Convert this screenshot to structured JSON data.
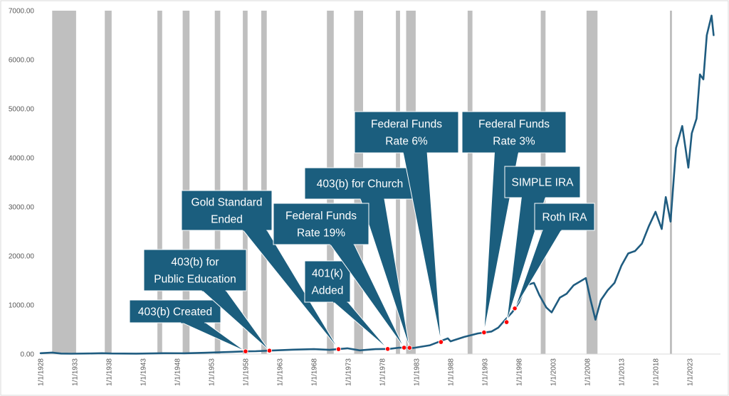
{
  "chart_data": {
    "type": "line",
    "title": "",
    "xlabel": "",
    "ylabel": "",
    "ylim": [
      0,
      7000
    ],
    "yticks": [
      0,
      1000,
      2000,
      3000,
      4000,
      5000,
      6000,
      7000
    ],
    "ytick_labels": [
      "0.00",
      "1000.00",
      "2000.00",
      "3000.00",
      "4000.00",
      "5000.00",
      "6000.00",
      "7000.00"
    ],
    "xlim": [
      1928.0,
      2027.5
    ],
    "xticks": [
      1928,
      1933,
      1938,
      1943,
      1948,
      1953,
      1958,
      1963,
      1968,
      1973,
      1978,
      1983,
      1988,
      1993,
      1998,
      2003,
      2008,
      2013,
      2018,
      2023
    ],
    "xtick_labels": [
      "1/1/1928",
      "1/1/1933",
      "1/1/1938",
      "1/1/1943",
      "1/1/1948",
      "1/1/1953",
      "1/1/1958",
      "1/1/1963",
      "1/1/1968",
      "1/1/1973",
      "1/1/1978",
      "1/1/1983",
      "1/1/1988",
      "1/1/1993",
      "1/1/1998",
      "1/1/2003",
      "1/1/2008",
      "1/1/2013",
      "1/1/2018",
      "1/1/2023"
    ],
    "grid": false,
    "legend": "none",
    "colors": {
      "line": "#1f5c80",
      "shade": "#bfbfbf",
      "callout": "#1b5e7e",
      "marker": "#ff0000"
    },
    "series": [
      {
        "x": [
          1928,
          1929.7,
          1931,
          1932.5,
          1935,
          1937,
          1938.3,
          1942,
          1946,
          1949,
          1952,
          1954,
          1956,
          1958,
          1959.5,
          1961.5,
          1965,
          1968,
          1970.3,
          1972.9,
          1974.7,
          1977,
          1979,
          1980.5,
          1982.6,
          1985,
          1987.6,
          1988,
          1990,
          1992,
          1994,
          1995,
          1996,
          1997,
          1998,
          1998.6,
          1999,
          2000.2,
          2001,
          2002,
          2002.8,
          2004,
          2005,
          2006,
          2007.8,
          2008.5,
          2009.2,
          2010,
          2011,
          2012,
          2013,
          2014,
          2015,
          2016,
          2017,
          2018,
          2018.9,
          2019.5,
          2020.2,
          2021,
          2021.9,
          2022.8,
          2023.3,
          2024,
          2024.5,
          2025,
          2025.5,
          2026.2,
          2026.5
        ],
        "values": [
          17,
          30,
          10,
          7,
          12,
          17,
          12,
          9,
          18,
          16,
          26,
          35,
          45,
          55,
          58,
          70,
          90,
          100,
          85,
          118,
          75,
          100,
          105,
          130,
          125,
          180,
          320,
          260,
          350,
          420,
          460,
          540,
          700,
          850,
          1050,
          1250,
          1400,
          1450,
          1200,
          950,
          850,
          1150,
          1230,
          1400,
          1550,
          1100,
          700,
          1100,
          1300,
          1450,
          1800,
          2050,
          2100,
          2250,
          2600,
          2900,
          2550,
          3200,
          2700,
          4200,
          4650,
          3800,
          4500,
          4800,
          5700,
          5600,
          6500,
          6900,
          6500
        ]
      }
    ],
    "recession_bands": [
      [
        1929.7,
        1933.2
      ],
      [
        1937.4,
        1938.4
      ],
      [
        1945.1,
        1945.8
      ],
      [
        1948.8,
        1949.8
      ],
      [
        1953.5,
        1954.3
      ],
      [
        1957.6,
        1958.3
      ],
      [
        1960.3,
        1961.1
      ],
      [
        1969.9,
        1970.9
      ],
      [
        1973.9,
        1975.2
      ],
      [
        1980.0,
        1980.6
      ],
      [
        1981.5,
        1982.9
      ],
      [
        1990.5,
        1991.2
      ],
      [
        2001.2,
        2001.9
      ],
      [
        2007.9,
        2009.5
      ],
      [
        2020.1,
        2020.4
      ]
    ],
    "annotations": [
      {
        "label": "403(b) Created",
        "x": 1958.0,
        "y": 55
      },
      {
        "label": "403(b) for Public Education",
        "x": 1961.5,
        "y": 70
      },
      {
        "label": "Gold Standard Ended",
        "x": 1971.6,
        "y": 100
      },
      {
        "label": "401(k) Added",
        "x": 1978.8,
        "y": 105
      },
      {
        "label": "403(b) for Church",
        "x": 1982.0,
        "y": 128
      },
      {
        "label": "Federal Funds Rate 19%",
        "x": 1981.2,
        "y": 130
      },
      {
        "label": "Federal Funds Rate 6%",
        "x": 1986.6,
        "y": 245
      },
      {
        "label": "Federal Funds Rate 3%",
        "x": 1992.9,
        "y": 440
      },
      {
        "label": "SIMPLE IRA",
        "x": 1996.2,
        "y": 650
      },
      {
        "label": "Roth IRA",
        "x": 1997.4,
        "y": 930
      }
    ]
  },
  "callouts": [
    {
      "lines": [
        "403(b) Created"
      ]
    },
    {
      "lines": [
        "403(b) for",
        "Public Education"
      ]
    },
    {
      "lines": [
        "Gold Standard",
        "Ended"
      ]
    },
    {
      "lines": [
        "401(k)",
        "Added"
      ]
    },
    {
      "lines": [
        "403(b) for Church"
      ]
    },
    {
      "lines": [
        "Federal Funds",
        "Rate 19%"
      ]
    },
    {
      "lines": [
        "Federal Funds",
        "Rate 6%"
      ]
    },
    {
      "lines": [
        "Federal Funds",
        "Rate 3%"
      ]
    },
    {
      "lines": [
        "SIMPLE IRA"
      ]
    },
    {
      "lines": [
        "Roth IRA"
      ]
    }
  ]
}
